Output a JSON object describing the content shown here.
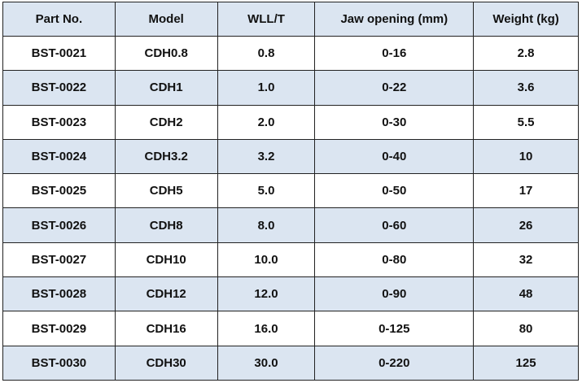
{
  "table": {
    "header": [
      "Part No.",
      "Model",
      "WLL/T",
      "Jaw opening (mm)",
      "Weight (kg)"
    ],
    "rows": [
      [
        "BST-0021",
        "CDH0.8",
        "0.8",
        "0-16",
        "2.8"
      ],
      [
        "BST-0022",
        "CDH1",
        "1.0",
        "0-22",
        "3.6"
      ],
      [
        "BST-0023",
        "CDH2",
        "2.0",
        "0-30",
        "5.5"
      ],
      [
        "BST-0024",
        "CDH3.2",
        "3.2",
        "0-40",
        "10"
      ],
      [
        "BST-0025",
        "CDH5",
        "5.0",
        "0-50",
        "17"
      ],
      [
        "BST-0026",
        "CDH8",
        "8.0",
        "0-60",
        "26"
      ],
      [
        "BST-0027",
        "CDH10",
        "10.0",
        "0-80",
        "32"
      ],
      [
        "BST-0028",
        "CDH12",
        "12.0",
        "0-90",
        "48"
      ],
      [
        "BST-0029",
        "CDH16",
        "16.0",
        "0-125",
        "80"
      ],
      [
        "BST-0030",
        "CDH30",
        "30.0",
        "0-220",
        "125"
      ]
    ]
  }
}
